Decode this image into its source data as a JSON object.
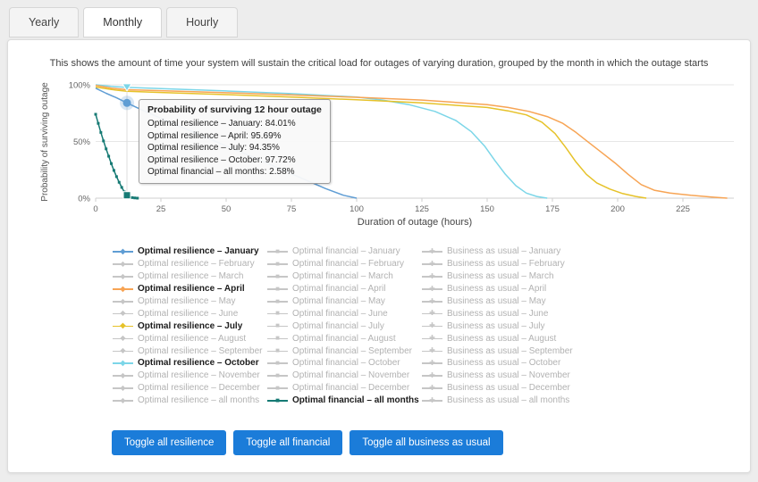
{
  "tabs": [
    {
      "label": "Yearly",
      "active": false
    },
    {
      "label": "Monthly",
      "active": true
    },
    {
      "label": "Hourly",
      "active": false
    }
  ],
  "description": "This shows the amount of time your system will sustain the critical load for outages of varying duration, grouped by the month in which the outage starts",
  "tooltip": {
    "title": "Probability of surviving 12 hour outage",
    "lines": [
      "Optimal resilience – January: 84.01%",
      "Optimal resilience – April: 95.69%",
      "Optimal resilience – July: 94.35%",
      "Optimal resilience – October: 97.72%",
      "Optimal financial – all months: 2.58%"
    ]
  },
  "chart_data": {
    "type": "line",
    "xlabel": "Duration of outage (hours)",
    "ylabel": "Probability of surviving outage",
    "xlim": [
      0,
      243
    ],
    "ylim": [
      0,
      100
    ],
    "x_ticks": [
      0,
      25,
      50,
      75,
      100,
      125,
      150,
      175,
      200,
      225
    ],
    "y_ticks": [
      {
        "value": 0,
        "label": "0%"
      },
      {
        "value": 50,
        "label": "50%"
      },
      {
        "value": 100,
        "label": "100%"
      }
    ],
    "grid": "horizontal",
    "legend_position": "bottom",
    "highlight_x": 12,
    "series": [
      {
        "id": "res-october",
        "name": "Optimal resilience – October",
        "color": "#7CD6E8",
        "points": [
          [
            0,
            100
          ],
          [
            6,
            98.6
          ],
          [
            12,
            97.72
          ],
          [
            25,
            96.6
          ],
          [
            50,
            94.6
          ],
          [
            75,
            92.2
          ],
          [
            100,
            89.2
          ],
          [
            110,
            86.5
          ],
          [
            120,
            82.5
          ],
          [
            130,
            76.5
          ],
          [
            138,
            68.5
          ],
          [
            144,
            58.5
          ],
          [
            149,
            46
          ],
          [
            153,
            33
          ],
          [
            157,
            21
          ],
          [
            161,
            11
          ],
          [
            165,
            4.5
          ],
          [
            169,
            1.5
          ],
          [
            173,
            0
          ]
        ]
      },
      {
        "id": "res-april",
        "name": "Optimal resilience – April",
        "color": "#F7A454",
        "points": [
          [
            0,
            99.5
          ],
          [
            6,
            97
          ],
          [
            12,
            95.69
          ],
          [
            25,
            94.8
          ],
          [
            50,
            93
          ],
          [
            75,
            91
          ],
          [
            100,
            89
          ],
          [
            125,
            86.5
          ],
          [
            150,
            82.5
          ],
          [
            158,
            80
          ],
          [
            166,
            76.5
          ],
          [
            173,
            72
          ],
          [
            179,
            66
          ],
          [
            184,
            58
          ],
          [
            189,
            49
          ],
          [
            194,
            40
          ],
          [
            199,
            31
          ],
          [
            204,
            21
          ],
          [
            209,
            12
          ],
          [
            214,
            7
          ],
          [
            220,
            4.5
          ],
          [
            228,
            2.5
          ],
          [
            236,
            1
          ],
          [
            242,
            0
          ]
        ]
      },
      {
        "id": "res-july",
        "name": "Optimal resilience – July",
        "color": "#E6C229",
        "points": [
          [
            0,
            98
          ],
          [
            6,
            95.8
          ],
          [
            12,
            94.35
          ],
          [
            25,
            93.2
          ],
          [
            50,
            91.3
          ],
          [
            75,
            89.2
          ],
          [
            100,
            86.8
          ],
          [
            125,
            84
          ],
          [
            150,
            80
          ],
          [
            158,
            77
          ],
          [
            165,
            73.5
          ],
          [
            171,
            67
          ],
          [
            176,
            57
          ],
          [
            180,
            45
          ],
          [
            184,
            32
          ],
          [
            188,
            21
          ],
          [
            192,
            13.5
          ],
          [
            197,
            8
          ],
          [
            202,
            4
          ],
          [
            207,
            1.5
          ],
          [
            211,
            0
          ]
        ]
      },
      {
        "id": "res-january",
        "name": "Optimal resilience – January",
        "color": "#5F9DD4",
        "points": [
          [
            0,
            97
          ],
          [
            4,
            92.5
          ],
          [
            8,
            88.5
          ],
          [
            12,
            84.01
          ],
          [
            18,
            77.5
          ],
          [
            25,
            70.5
          ],
          [
            32,
            63.5
          ],
          [
            40,
            56
          ],
          [
            50,
            46
          ],
          [
            60,
            36.5
          ],
          [
            70,
            26.5
          ],
          [
            80,
            16.5
          ],
          [
            88,
            8.5
          ],
          [
            95,
            2.5
          ],
          [
            100,
            0
          ]
        ]
      },
      {
        "id": "fin-all",
        "name": "Optimal financial – all months",
        "color": "#167A74",
        "marker": "square",
        "points": [
          [
            0,
            74
          ],
          [
            1,
            66
          ],
          [
            2,
            58
          ],
          [
            3,
            50.5
          ],
          [
            4,
            43.5
          ],
          [
            5,
            37
          ],
          [
            6,
            30.5
          ],
          [
            7,
            24.5
          ],
          [
            8,
            19
          ],
          [
            9,
            14
          ],
          [
            10,
            9.5
          ],
          [
            11,
            5.5
          ],
          [
            12,
            2.58
          ],
          [
            13,
            1.2
          ],
          [
            14,
            0.5
          ],
          [
            15,
            0.2
          ],
          [
            16,
            0
          ]
        ]
      }
    ],
    "highlights": [
      {
        "series": "res-october",
        "x": 12,
        "y": 97.72,
        "shape": "triangle-down",
        "color": "#7CD6E8"
      },
      {
        "series": "res-january",
        "x": 12,
        "y": 84.01,
        "shape": "circle",
        "color": "#5F9DD4"
      },
      {
        "series": "fin-all",
        "x": 12,
        "y": 2.58,
        "shape": "square",
        "color": "#167A74"
      }
    ]
  },
  "legend": {
    "columns": [
      {
        "marker": "diamond",
        "items": [
          {
            "label": "Optimal resilience – January",
            "active": true,
            "color": "#5F9DD4"
          },
          {
            "label": "Optimal resilience – February",
            "active": false
          },
          {
            "label": "Optimal resilience – March",
            "active": false
          },
          {
            "label": "Optimal resilience – April",
            "active": true,
            "color": "#F7A454"
          },
          {
            "label": "Optimal resilience – May",
            "active": false
          },
          {
            "label": "Optimal resilience – June",
            "active": false
          },
          {
            "label": "Optimal resilience – July",
            "active": true,
            "color": "#E6C229"
          },
          {
            "label": "Optimal resilience – August",
            "active": false
          },
          {
            "label": "Optimal resilience – September",
            "active": false
          },
          {
            "label": "Optimal resilience – October",
            "active": true,
            "color": "#7CD6E8"
          },
          {
            "label": "Optimal resilience – November",
            "active": false
          },
          {
            "label": "Optimal resilience – December",
            "active": false
          },
          {
            "label": "Optimal resilience – all months",
            "active": false
          }
        ]
      },
      {
        "marker": "square",
        "items": [
          {
            "label": "Optimal financial – January",
            "active": false
          },
          {
            "label": "Optimal financial – February",
            "active": false
          },
          {
            "label": "Optimal financial – March",
            "active": false
          },
          {
            "label": "Optimal financial – April",
            "active": false
          },
          {
            "label": "Optimal financial – May",
            "active": false
          },
          {
            "label": "Optimal financial – June",
            "active": false
          },
          {
            "label": "Optimal financial – July",
            "active": false
          },
          {
            "label": "Optimal financial – August",
            "active": false
          },
          {
            "label": "Optimal financial – September",
            "active": false
          },
          {
            "label": "Optimal financial – October",
            "active": false
          },
          {
            "label": "Optimal financial – November",
            "active": false
          },
          {
            "label": "Optimal financial – December",
            "active": false
          },
          {
            "label": "Optimal financial – all months",
            "active": true,
            "color": "#167A74"
          }
        ]
      },
      {
        "marker": "cross",
        "items": [
          {
            "label": "Business as usual – January",
            "active": false
          },
          {
            "label": "Business as usual – February",
            "active": false
          },
          {
            "label": "Business as usual – March",
            "active": false
          },
          {
            "label": "Business as usual – April",
            "active": false
          },
          {
            "label": "Business as usual – May",
            "active": false
          },
          {
            "label": "Business as usual – June",
            "active": false
          },
          {
            "label": "Business as usual – July",
            "active": false
          },
          {
            "label": "Business as usual – August",
            "active": false
          },
          {
            "label": "Business as usual – September",
            "active": false
          },
          {
            "label": "Business as usual – October",
            "active": false
          },
          {
            "label": "Business as usual – November",
            "active": false
          },
          {
            "label": "Business as usual – December",
            "active": false
          },
          {
            "label": "Business as usual – all months",
            "active": false
          }
        ]
      }
    ]
  },
  "buttons": [
    {
      "label": "Toggle all resilience"
    },
    {
      "label": "Toggle all financial"
    },
    {
      "label": "Toggle all business as usual"
    }
  ],
  "colors": {
    "button_bg": "#1b7cd9",
    "inactive_icon": "#c6c6c6",
    "inactive_text": "#b2b2b2",
    "active_text": "#1c1c1c"
  }
}
